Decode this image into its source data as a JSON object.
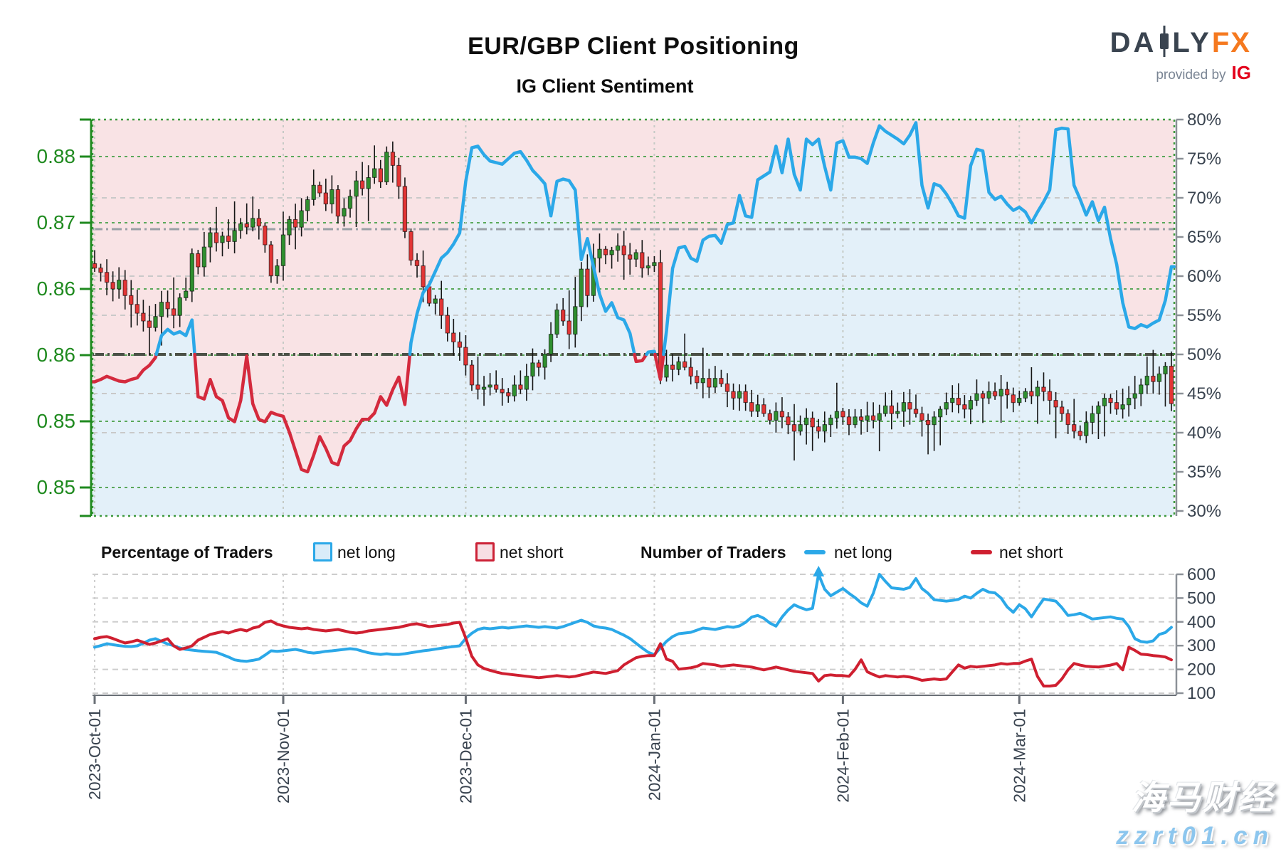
{
  "header": {
    "title": "EUR/GBP Client Positioning",
    "subtitle": "IG Client Sentiment"
  },
  "logo": {
    "brand_prefix": "DA",
    "brand_mid": "LY",
    "brand_suffix": "FX",
    "tagline": "provided by",
    "provider": "IG"
  },
  "legend": {
    "pct_group": "Percentage of Traders",
    "count_group": "Number of Traders",
    "net_long": "net long",
    "net_short": "net short"
  },
  "watermark": {
    "line1": "海马财经",
    "line2": "zzrt01.cn"
  },
  "colors": {
    "axis_green": "#1f8a1f",
    "grid_green": "#5aa85a",
    "text_navy": "#39434f",
    "line_blue": "#2ba8e8",
    "line_red": "#d42a3d",
    "candle_up": "#2f8f2f",
    "candle_down": "#e23535",
    "fill_above": "#f9e3e5",
    "fill_below": "#e3f0f9",
    "mid_line": "#4b5046",
    "brand_orange": "#f5791f",
    "ig_red": "#e3001b"
  },
  "x_axis": {
    "ticks": [
      {
        "label": "2023-Oct-01",
        "day": 0
      },
      {
        "label": "2023-Nov-01",
        "day": 31
      },
      {
        "label": "2023-Dec-01",
        "day": 61
      },
      {
        "label": "2024-Jan-01",
        "day": 92
      },
      {
        "label": "2024-Feb-01",
        "day": 123
      },
      {
        "label": "2024-Mar-01",
        "day": 152
      }
    ]
  },
  "chart_data": [
    {
      "type": "candlestick+line",
      "title": "IG Client Sentiment",
      "start_date": "2023-10-01",
      "end_date": "2024-03-26",
      "price_axis": {
        "tick_labels": [
          "0.88",
          "0.87",
          "0.86",
          "0.86",
          "0.85",
          "0.85"
        ],
        "tick_values": [
          0.876,
          0.87,
          0.864,
          0.858,
          0.852,
          0.846
        ]
      },
      "pct_axis": {
        "labels": [
          "80%",
          "75%",
          "70%",
          "65%",
          "60%",
          "55%",
          "50%",
          "45%",
          "40%",
          "35%",
          "30%"
        ],
        "values": [
          80,
          75,
          70,
          65,
          60,
          55,
          50,
          45,
          40,
          35,
          30
        ],
        "gridlines_dashed": [
          70,
          60,
          55,
          45,
          40
        ],
        "guide_dashdot": 66,
        "midline": 50
      },
      "net_long_pct": [
        46.5,
        46.8,
        47.2,
        46.9,
        46.6,
        46.5,
        46.8,
        47.0,
        48.0,
        48.6,
        49.6,
        52.4,
        53.2,
        52.6,
        52.9,
        52.4,
        54.4,
        44.6,
        44.3,
        46.8,
        44.6,
        44.1,
        41.9,
        41.4,
        44.1,
        49.8,
        43.7,
        41.7,
        41.4,
        42.6,
        42.3,
        42.1,
        40.1,
        37.7,
        35.3,
        35.0,
        37.1,
        39.5,
        38.0,
        36.2,
        35.9,
        38.3,
        39.0,
        40.5,
        41.7,
        41.7,
        42.5,
        44.6,
        43.5,
        45.5,
        47.1,
        43.6,
        51.5,
        55.2,
        57.9,
        58.9,
        60.6,
        62.3,
        63.0,
        64.1,
        65.5,
        72.1,
        76.4,
        76.6,
        75.5,
        74.7,
        74.5,
        74.3,
        75.0,
        75.7,
        75.9,
        74.8,
        73.5,
        72.7,
        71.8,
        67.7,
        72.1,
        72.4,
        72.2,
        71.0,
        62.1,
        64.8,
        61.2,
        57.7,
        55.5,
        56.6,
        54.7,
        54.4,
        52.7,
        49.1,
        49.2,
        50.3,
        50.4,
        46.8,
        53.0,
        61.0,
        63.6,
        63.8,
        62.3,
        61.9,
        64.6,
        65.1,
        65.2,
        64.2,
        66.6,
        66.8,
        70.3,
        67.7,
        67.5,
        72.3,
        72.8,
        73.3,
        76.6,
        73.2,
        77.5,
        73.0,
        71.0,
        77.5,
        76.8,
        77.5,
        74.0,
        71.0,
        77.0,
        77.3,
        75.2,
        75.2,
        75.0,
        74.4,
        77.0,
        79.2,
        78.5,
        78.0,
        77.5,
        76.9,
        78.0,
        79.6,
        71.6,
        68.7,
        71.8,
        71.5,
        70.5,
        69.2,
        67.7,
        67.4,
        74.1,
        76.2,
        76.0,
        70.7,
        69.8,
        70.2,
        69.2,
        68.4,
        68.8,
        68.2,
        66.8,
        68.2,
        69.5,
        71.0,
        78.7,
        78.9,
        78.8,
        71.6,
        69.8,
        67.8,
        69.5,
        67.1,
        68.8,
        64.8,
        61.5,
        56.6,
        53.5,
        53.3,
        53.8,
        53.5,
        54.0,
        54.4,
        56.9,
        61.2
      ],
      "close": [
        0.8659,
        0.8655,
        0.8646,
        0.864,
        0.8648,
        0.8634,
        0.8626,
        0.8618,
        0.8611,
        0.8605,
        0.8615,
        0.8628,
        0.8622,
        0.8616,
        0.8632,
        0.8638,
        0.8672,
        0.866,
        0.8678,
        0.8691,
        0.8682,
        0.8688,
        0.8683,
        0.8693,
        0.8699,
        0.8696,
        0.8704,
        0.8697,
        0.868,
        0.8652,
        0.8661,
        0.8689,
        0.8703,
        0.8696,
        0.8711,
        0.8721,
        0.8734,
        0.8727,
        0.8717,
        0.873,
        0.8706,
        0.8713,
        0.8724,
        0.8738,
        0.8731,
        0.8741,
        0.8749,
        0.8737,
        0.8764,
        0.8752,
        0.8733,
        0.8692,
        0.8666,
        0.8661,
        0.8642,
        0.8627,
        0.8631,
        0.8616,
        0.86,
        0.8592,
        0.8587,
        0.8571,
        0.8553,
        0.8549,
        0.8551,
        0.8553,
        0.8549,
        0.8546,
        0.8543,
        0.8553,
        0.8549,
        0.8561,
        0.8573,
        0.8569,
        0.8581,
        0.8599,
        0.8621,
        0.8611,
        0.8599,
        0.8624,
        0.8658,
        0.8634,
        0.8668,
        0.8676,
        0.8671,
        0.8675,
        0.8679,
        0.8671,
        0.8667,
        0.8673,
        0.8659,
        0.8661,
        0.8664,
        0.856,
        0.8571,
        0.8567,
        0.8574,
        0.8569,
        0.8561,
        0.8555,
        0.8559,
        0.8551,
        0.8559,
        0.8554,
        0.8547,
        0.8541,
        0.8547,
        0.8537,
        0.8529,
        0.8535,
        0.8527,
        0.8521,
        0.8529,
        0.8524,
        0.8517,
        0.8511,
        0.8517,
        0.8523,
        0.8515,
        0.8511,
        0.8517,
        0.8523,
        0.8529,
        0.8524,
        0.8517,
        0.8524,
        0.8521,
        0.8525,
        0.8521,
        0.8527,
        0.8534,
        0.8527,
        0.8529,
        0.8537,
        0.8531,
        0.8527,
        0.8521,
        0.8517,
        0.8524,
        0.8531,
        0.8537,
        0.8541,
        0.8535,
        0.8531,
        0.8539,
        0.8545,
        0.8541,
        0.8547,
        0.8543,
        0.8549,
        0.8544,
        0.8537,
        0.8541,
        0.8547,
        0.8543,
        0.8551,
        0.8547,
        0.8539,
        0.8533,
        0.8527,
        0.8517,
        0.8511,
        0.8507,
        0.8519,
        0.8527,
        0.8534,
        0.8541,
        0.8537,
        0.8531,
        0.8535,
        0.8541,
        0.8545,
        0.8553,
        0.8561,
        0.8556,
        0.8563,
        0.857,
        0.8536
      ]
    },
    {
      "type": "line",
      "y_axis": {
        "labels": [
          "600",
          "500",
          "400",
          "300",
          "200",
          "100"
        ],
        "values": [
          600,
          500,
          400,
          300,
          200,
          100
        ],
        "range": [
          100,
          600
        ]
      },
      "offscale_marker_day": 119,
      "series": [
        {
          "name": "net long",
          "color": "#2ba8e8",
          "values": [
            293,
            300,
            308,
            304,
            300,
            297,
            296,
            299,
            310,
            323,
            329,
            318,
            307,
            300,
            290,
            284,
            281,
            278,
            276,
            274,
            272,
            262,
            252,
            240,
            236,
            234,
            238,
            243,
            260,
            278,
            276,
            278,
            281,
            284,
            279,
            272,
            269,
            272,
            276,
            278,
            281,
            284,
            287,
            284,
            277,
            270,
            266,
            263,
            266,
            263,
            263,
            266,
            270,
            274,
            278,
            281,
            285,
            289,
            293,
            296,
            299,
            330,
            352,
            368,
            374,
            371,
            374,
            377,
            374,
            377,
            380,
            383,
            380,
            377,
            380,
            377,
            374,
            380,
            389,
            398,
            407,
            398,
            383,
            377,
            374,
            368,
            356,
            344,
            330,
            310,
            290,
            272,
            262,
            290,
            318,
            338,
            350,
            353,
            356,
            365,
            374,
            371,
            368,
            374,
            380,
            377,
            383,
            398,
            420,
            427,
            415,
            395,
            382,
            420,
            450,
            472,
            460,
            451,
            457,
            600,
            537,
            510,
            525,
            540,
            520,
            502,
            480,
            466,
            520,
            600,
            570,
            543,
            540,
            537,
            545,
            582,
            540,
            520,
            493,
            490,
            487,
            490,
            495,
            508,
            500,
            520,
            537,
            525,
            522,
            500,
            463,
            440,
            472,
            455,
            421,
            460,
            496,
            492,
            487,
            460,
            427,
            430,
            436,
            425,
            412,
            415,
            418,
            421,
            415,
            412,
            380,
            329,
            317,
            314,
            320,
            347,
            355,
            377
          ]
        },
        {
          "name": "net short",
          "color": "#cf1f30",
          "values": [
            329,
            335,
            338,
            330,
            320,
            311,
            316,
            323,
            314,
            305,
            311,
            320,
            329,
            299,
            284,
            290,
            299,
            323,
            335,
            347,
            353,
            359,
            353,
            362,
            368,
            362,
            374,
            380,
            398,
            404,
            390,
            383,
            377,
            374,
            371,
            374,
            368,
            365,
            362,
            365,
            368,
            362,
            356,
            353,
            356,
            362,
            365,
            368,
            371,
            374,
            377,
            383,
            389,
            392,
            386,
            380,
            383,
            386,
            389,
            395,
            398,
            332,
            255,
            219,
            204,
            196,
            189,
            183,
            180,
            177,
            174,
            171,
            168,
            165,
            168,
            171,
            174,
            171,
            168,
            171,
            177,
            183,
            189,
            186,
            183,
            189,
            195,
            219,
            234,
            249,
            255,
            258,
            258,
            308,
            243,
            234,
            201,
            204,
            207,
            213,
            225,
            222,
            219,
            213,
            216,
            219,
            216,
            213,
            210,
            204,
            198,
            204,
            210,
            204,
            198,
            192,
            189,
            186,
            183,
            151,
            174,
            177,
            174,
            174,
            171,
            200,
            240,
            190,
            178,
            168,
            174,
            171,
            168,
            171,
            168,
            162,
            154,
            157,
            160,
            157,
            160,
            190,
            219,
            205,
            213,
            210,
            213,
            216,
            219,
            225,
            222,
            225,
            225,
            235,
            243,
            170,
            130,
            130,
            133,
            160,
            198,
            225,
            218,
            213,
            211,
            210,
            214,
            218,
            225,
            198,
            293,
            280,
            264,
            262,
            258,
            256,
            252,
            240
          ]
        }
      ]
    }
  ]
}
